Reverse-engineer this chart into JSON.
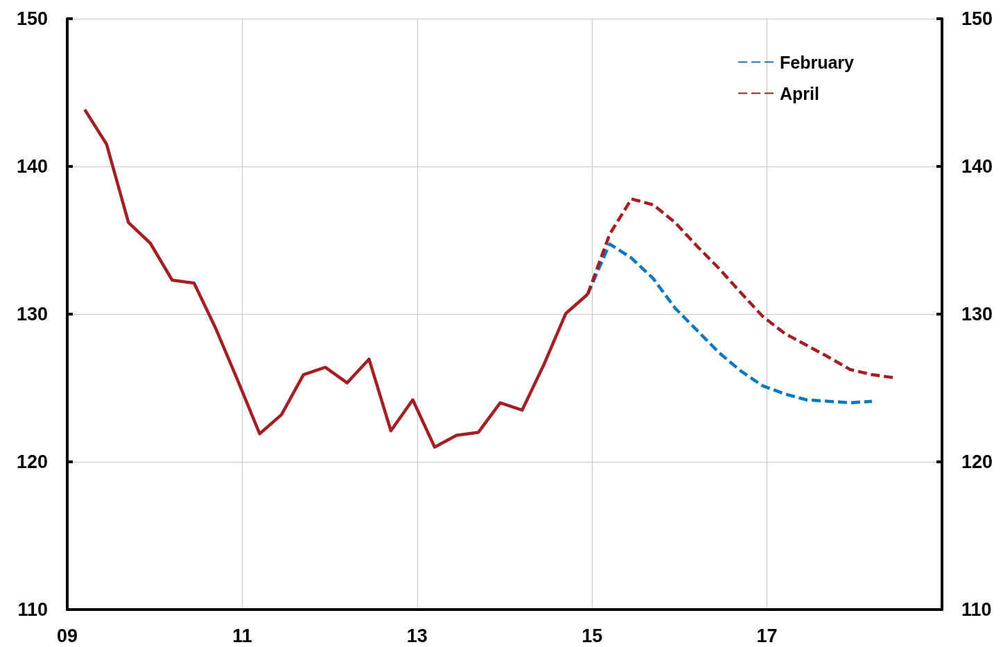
{
  "chart_data": {
    "type": "line",
    "xlim": [
      2009,
      2019
    ],
    "xticks": [
      {
        "value": 2009,
        "label": "09"
      },
      {
        "value": 2011,
        "label": "11"
      },
      {
        "value": 2013,
        "label": "13"
      },
      {
        "value": 2015,
        "label": "15"
      },
      {
        "value": 2017,
        "label": "17"
      }
    ],
    "ylim": [
      110,
      150
    ],
    "yticks": [
      110,
      120,
      130,
      140,
      150
    ],
    "y2lim": [
      110,
      150
    ],
    "y2ticks": [
      110,
      120,
      130,
      140,
      150
    ],
    "grid": true,
    "legend": "top right",
    "marker": "none",
    "series": [
      {
        "color": "#a31f24",
        "line_style": "solid",
        "x": [
          2009.2,
          2009.45,
          2009.7,
          2009.95,
          2010.2,
          2010.45,
          2010.7,
          2010.95,
          2011.2,
          2011.45,
          2011.7,
          2011.95,
          2012.2,
          2012.45,
          2012.7,
          2012.95,
          2013.2,
          2013.45,
          2013.7,
          2013.95,
          2014.2,
          2014.45,
          2014.7,
          2014.95
        ],
        "values": [
          143.85,
          141.5,
          136.2,
          134.8,
          132.3,
          132.1,
          129.0,
          125.5,
          121.9,
          123.2,
          125.9,
          126.4,
          125.35,
          126.95,
          122.1,
          124.2,
          121.0,
          121.8,
          122.0,
          124.0,
          123.5,
          126.6,
          130.05,
          131.35
        ]
      },
      {
        "name": "February",
        "color": "#0a78be",
        "line_style": "dashed",
        "x": [
          2014.95,
          2015.2,
          2015.45,
          2015.7,
          2015.95,
          2016.2,
          2016.45,
          2016.7,
          2016.95,
          2017.2,
          2017.45,
          2017.7,
          2017.95,
          2018.2
        ],
        "values": [
          131.35,
          134.75,
          133.8,
          132.4,
          130.4,
          128.9,
          127.4,
          126.15,
          125.15,
          124.6,
          124.2,
          124.1,
          124.0,
          124.1
        ]
      },
      {
        "name": "April",
        "color": "#a31f24",
        "line_style": "dashed",
        "x": [
          2014.95,
          2015.2,
          2015.45,
          2015.7,
          2015.95,
          2016.2,
          2016.45,
          2016.7,
          2016.95,
          2017.2,
          2017.45,
          2017.7,
          2017.95,
          2018.2,
          2018.45
        ],
        "values": [
          131.35,
          135.4,
          137.8,
          137.4,
          136.2,
          134.6,
          133.1,
          131.45,
          129.85,
          128.7,
          127.9,
          127.1,
          126.25,
          125.9,
          125.7
        ]
      }
    ]
  }
}
